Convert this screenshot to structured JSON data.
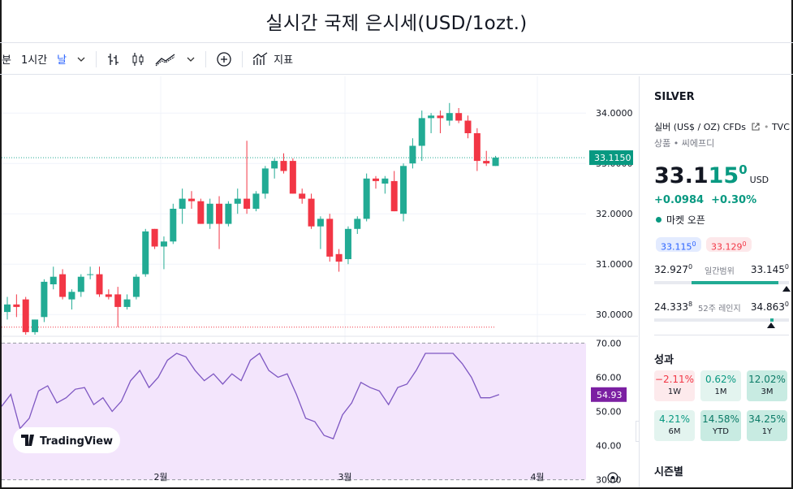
{
  "title": "실시간 국제 은시세(USD/1ozt.)",
  "toolbar": {
    "minute": "분",
    "hour": "1시간",
    "day": "날",
    "chevron": "⌄",
    "indicators": "지표"
  },
  "chart_data": {
    "type": "candlestick",
    "y_axis": {
      "ylim": [
        29.6,
        34.6
      ],
      "ticks": [
        "34.0000",
        "33.0000",
        "32.0000",
        "31.0000",
        "30.0000"
      ],
      "tick_values": [
        34,
        33,
        32,
        31,
        30
      ]
    },
    "x_axis": {
      "ticks": [
        "2월",
        "3월",
        "4월"
      ]
    },
    "last_price_label": "33.1150",
    "last_price": 33.115,
    "reference_line": 29.75,
    "candles": [
      {
        "o": 30.05,
        "h": 30.35,
        "l": 29.9,
        "c": 30.2
      },
      {
        "o": 30.2,
        "h": 30.4,
        "l": 29.95,
        "c": 30.15
      },
      {
        "o": 30.3,
        "h": 30.35,
        "l": 29.6,
        "c": 29.65
      },
      {
        "o": 29.65,
        "h": 29.9,
        "l": 29.6,
        "c": 29.9
      },
      {
        "o": 29.95,
        "h": 30.7,
        "l": 29.85,
        "c": 30.65
      },
      {
        "o": 30.6,
        "h": 30.95,
        "l": 30.5,
        "c": 30.75
      },
      {
        "o": 30.8,
        "h": 30.9,
        "l": 30.3,
        "c": 30.35
      },
      {
        "o": 30.3,
        "h": 30.5,
        "l": 30.1,
        "c": 30.45
      },
      {
        "o": 30.45,
        "h": 30.8,
        "l": 30.35,
        "c": 30.75
      },
      {
        "o": 30.8,
        "h": 30.95,
        "l": 30.7,
        "c": 30.8
      },
      {
        "o": 30.8,
        "h": 30.95,
        "l": 30.35,
        "c": 30.4
      },
      {
        "o": 30.4,
        "h": 30.5,
        "l": 30.3,
        "c": 30.35
      },
      {
        "o": 30.4,
        "h": 30.55,
        "l": 29.75,
        "c": 30.15
      },
      {
        "o": 30.15,
        "h": 30.4,
        "l": 30.1,
        "c": 30.3
      },
      {
        "o": 30.35,
        "h": 30.8,
        "l": 30.3,
        "c": 30.75
      },
      {
        "o": 30.8,
        "h": 31.7,
        "l": 30.75,
        "c": 31.65
      },
      {
        "o": 31.7,
        "h": 31.7,
        "l": 31.3,
        "c": 31.35
      },
      {
        "o": 31.35,
        "h": 31.55,
        "l": 30.9,
        "c": 31.45
      },
      {
        "o": 31.45,
        "h": 32.2,
        "l": 31.4,
        "c": 32.1
      },
      {
        "o": 32.1,
        "h": 32.5,
        "l": 31.8,
        "c": 32.3
      },
      {
        "o": 32.3,
        "h": 32.45,
        "l": 32.1,
        "c": 32.25
      },
      {
        "o": 32.25,
        "h": 32.3,
        "l": 31.8,
        "c": 31.8
      },
      {
        "o": 31.8,
        "h": 32.3,
        "l": 31.7,
        "c": 32.2
      },
      {
        "o": 32.2,
        "h": 32.35,
        "l": 31.3,
        "c": 31.8
      },
      {
        "o": 31.8,
        "h": 32.25,
        "l": 31.75,
        "c": 32.2
      },
      {
        "o": 32.2,
        "h": 32.5,
        "l": 32.0,
        "c": 32.3
      },
      {
        "o": 32.3,
        "h": 33.45,
        "l": 32.0,
        "c": 32.1
      },
      {
        "o": 32.1,
        "h": 32.45,
        "l": 32.05,
        "c": 32.4
      },
      {
        "o": 32.4,
        "h": 32.95,
        "l": 32.3,
        "c": 32.9
      },
      {
        "o": 32.9,
        "h": 33.1,
        "l": 32.7,
        "c": 33.05
      },
      {
        "o": 33.05,
        "h": 33.2,
        "l": 32.8,
        "c": 32.85
      },
      {
        "o": 33.05,
        "h": 33.1,
        "l": 32.4,
        "c": 32.4
      },
      {
        "o": 32.4,
        "h": 32.5,
        "l": 32.2,
        "c": 32.3
      },
      {
        "o": 32.3,
        "h": 32.4,
        "l": 31.7,
        "c": 31.75
      },
      {
        "o": 31.75,
        "h": 31.95,
        "l": 31.3,
        "c": 31.9
      },
      {
        "o": 31.9,
        "h": 32.0,
        "l": 31.05,
        "c": 31.15
      },
      {
        "o": 31.2,
        "h": 31.3,
        "l": 30.85,
        "c": 31.05
      },
      {
        "o": 31.1,
        "h": 31.75,
        "l": 31.0,
        "c": 31.7
      },
      {
        "o": 31.7,
        "h": 31.95,
        "l": 31.6,
        "c": 31.9
      },
      {
        "o": 31.9,
        "h": 32.8,
        "l": 31.85,
        "c": 32.7
      },
      {
        "o": 32.7,
        "h": 32.75,
        "l": 32.5,
        "c": 32.65
      },
      {
        "o": 32.6,
        "h": 32.75,
        "l": 32.4,
        "c": 32.7
      },
      {
        "o": 32.65,
        "h": 32.85,
        "l": 32.05,
        "c": 32.05
      },
      {
        "o": 32.0,
        "h": 33.0,
        "l": 31.85,
        "c": 32.95
      },
      {
        "o": 33.0,
        "h": 33.5,
        "l": 32.9,
        "c": 33.35
      },
      {
        "o": 33.35,
        "h": 34.05,
        "l": 33.05,
        "c": 33.9
      },
      {
        "o": 33.9,
        "h": 34.0,
        "l": 33.6,
        "c": 33.95
      },
      {
        "o": 33.95,
        "h": 34.05,
        "l": 33.6,
        "c": 33.9
      },
      {
        "o": 33.85,
        "h": 34.2,
        "l": 33.75,
        "c": 34.0
      },
      {
        "o": 34.0,
        "h": 34.1,
        "l": 33.8,
        "c": 33.85
      },
      {
        "o": 33.85,
        "h": 33.95,
        "l": 33.5,
        "c": 33.6
      },
      {
        "o": 33.6,
        "h": 33.7,
        "l": 32.85,
        "c": 33.05
      },
      {
        "o": 33.05,
        "h": 33.25,
        "l": 32.95,
        "c": 33.0
      },
      {
        "o": 32.95,
        "h": 33.15,
        "l": 32.95,
        "c": 33.115
      }
    ],
    "rsi": {
      "ylim": [
        28,
        72
      ],
      "band": [
        30,
        70
      ],
      "ticks": [
        "70.00",
        "60.00",
        "50.00",
        "40.00",
        "30.00"
      ],
      "tick_values": [
        70,
        60,
        50,
        40,
        30
      ],
      "last_label": "54.93",
      "last": 54.93,
      "values": [
        51.5,
        55,
        45,
        48,
        56,
        57.5,
        52.5,
        54,
        56.5,
        57,
        52,
        54,
        50,
        53,
        59,
        62,
        57,
        60,
        65,
        67,
        66,
        62,
        59,
        61,
        58,
        61,
        59,
        65,
        67,
        62,
        60,
        61,
        55,
        48,
        47,
        43,
        42,
        49,
        52.5,
        58.5,
        57,
        56,
        52,
        57,
        58,
        62,
        67,
        67,
        67,
        67,
        64,
        60,
        54,
        54,
        54.93
      ]
    }
  },
  "watermark": "TradingView",
  "sidebar": {
    "symbol": "SILVER",
    "desc": "실버 (US$ / OZ) CFDs",
    "exchange": "TVC",
    "subdesc": "상품 • 씨에프디",
    "price_main": "33.1",
    "price_green": "15",
    "price_sup": "0",
    "currency": "USD",
    "change": "+0.0984",
    "change_pct": "+0.30%",
    "market_status": "마켓 오픈",
    "bid": "33.115",
    "bid_sup": "0",
    "ask": "33.129",
    "ask_sup": "0",
    "day_low": "32.927",
    "day_low_sup": "0",
    "day_label": "일간범위",
    "day_high": "33.145",
    "day_high_sup": "0",
    "day_position": 0.92,
    "wk_low": "24.333",
    "wk_low_sup": "8",
    "wk_label": "52주 레인지",
    "wk_high": "34.863",
    "wk_high_sup": "0",
    "wk_position": 0.84,
    "perf_title": "성과",
    "perf": [
      {
        "value": "−2.11%",
        "label": "1W",
        "tone": "neg"
      },
      {
        "value": "0.62%",
        "label": "1M",
        "tone": "pos"
      },
      {
        "value": "12.02%",
        "label": "3M",
        "tone": "pos2"
      },
      {
        "value": "4.21%",
        "label": "6M",
        "tone": "pos"
      },
      {
        "value": "14.58%",
        "label": "YTD",
        "tone": "pos2"
      },
      {
        "value": "34.25%",
        "label": "1Y",
        "tone": "pos2"
      }
    ],
    "seasonal_title": "시즌별"
  },
  "colors": {
    "up": "#22ab94",
    "down": "#f23645",
    "rsi_line": "#7e57c2",
    "rsi_bg": "#f3e5fc",
    "rsi_label_bg": "#7b1fa2"
  }
}
